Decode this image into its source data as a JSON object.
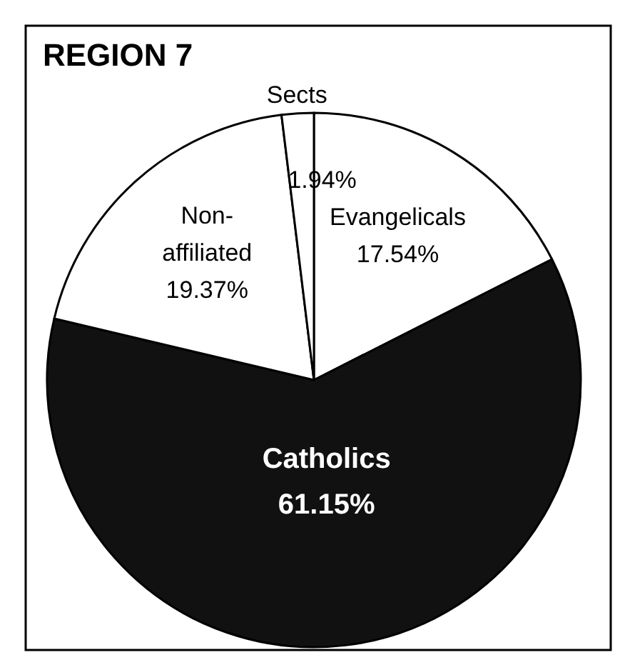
{
  "chart_data": {
    "type": "pie",
    "title": "REGION 7",
    "categories": [
      "Evangelicals",
      "Catholics",
      "Non-affiliated",
      "Sects"
    ],
    "values": [
      17.54,
      61.15,
      19.37,
      1.94
    ],
    "colors": [
      "#ffffff",
      "#111111",
      "#ffffff",
      "#ffffff"
    ],
    "value_labels": [
      "17.54%",
      "61.15%",
      "19.37%",
      "1.94%"
    ]
  }
}
